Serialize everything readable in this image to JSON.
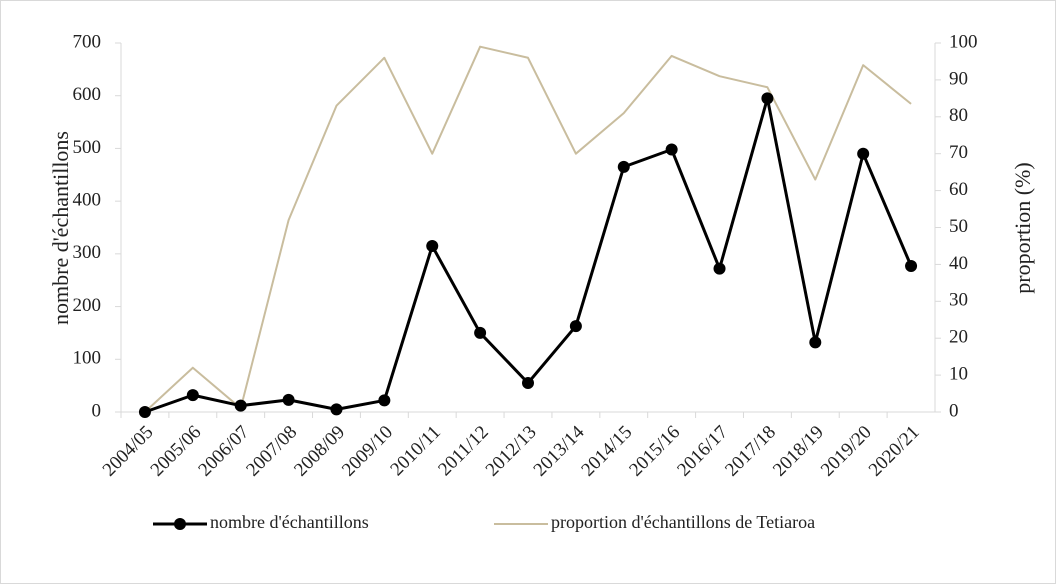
{
  "chart_data": {
    "type": "line",
    "categories": [
      "2004/05",
      "2005/06",
      "2006/07",
      "2007/08",
      "2008/09",
      "2009/10",
      "2010/11",
      "2011/12",
      "2012/13",
      "2013/14",
      "2014/15",
      "2015/16",
      "2016/17",
      "2017/18",
      "2018/19",
      "2019/20",
      "2020/21"
    ],
    "y_label": "nombre d'échantillons",
    "y2_label": "proportion (%)",
    "ylim": [
      0,
      700
    ],
    "yticks": [
      0,
      100,
      200,
      300,
      400,
      500,
      600,
      700
    ],
    "y2lim": [
      0,
      100
    ],
    "y2ticks": [
      0,
      10,
      20,
      30,
      40,
      50,
      60,
      70,
      80,
      90,
      100
    ],
    "legend": "bottom",
    "series": [
      {
        "name": "nombre d'échantillons",
        "color": "#000000",
        "marker": "circle",
        "values": [
          0,
          32,
          12,
          23,
          5,
          22,
          315,
          150,
          55,
          163,
          465,
          498,
          272,
          595,
          132,
          490,
          277
        ]
      },
      {
        "name": "proportion d'échantillons de Tetiaroa",
        "color": "#c9bd9e",
        "axis": "y2",
        "values": [
          0,
          12,
          1,
          52,
          83,
          96,
          70,
          99,
          96,
          70,
          81,
          96.5,
          91,
          88,
          63,
          94,
          83.5
        ]
      }
    ]
  }
}
